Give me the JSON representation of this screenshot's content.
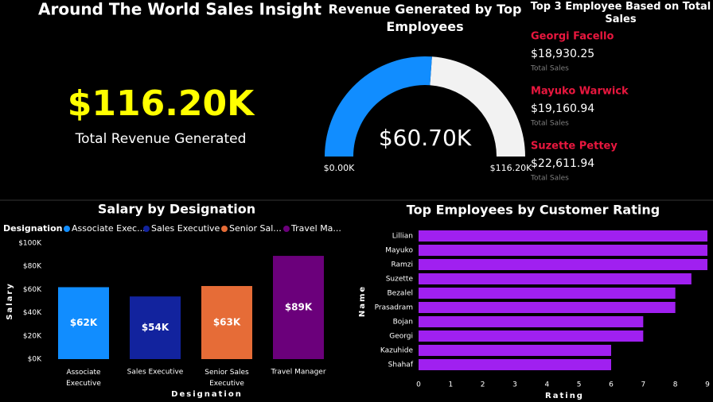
{
  "header": {
    "title": "Around The World Sales Insight"
  },
  "kpi": {
    "value": "$116.20K",
    "label": "Total Revenue Generated"
  },
  "top_employees": {
    "title": "Top 3 Employee Based on Total Sales",
    "items": [
      {
        "name": "Georgi Facello",
        "sales": "$18,930.25",
        "caption": "Total Sales"
      },
      {
        "name": "Mayuko Warwick",
        "sales": "$19,160.94",
        "caption": "Total Sales"
      },
      {
        "name": "Suzette Pettey",
        "sales": "$22,611.94",
        "caption": "Total Sales"
      }
    ]
  },
  "chart_data": [
    {
      "type": "gauge",
      "title": "Revenue Generated by Top Employees",
      "values": [
        60700
      ],
      "value_labels": [
        "$60.70K"
      ],
      "ylim": [
        0,
        116200
      ],
      "yticks": [
        {
          "value": 0,
          "label": "$0.00K"
        },
        {
          "value": 116200,
          "label": "$116.20K"
        }
      ],
      "color": "#118dff",
      "track_color": "#f2f2f2"
    },
    {
      "type": "bar",
      "title": "Salary by Designation",
      "legend_title": "Designation",
      "legend_labels": [
        "Associate Exec...",
        "Sales Executive",
        "Senior Sal...",
        "Travel Ma..."
      ],
      "categories": [
        "Associate Executive",
        "Sales Executive",
        "Senior Sales Executive",
        "Travel Manager"
      ],
      "values": [
        62000,
        54000,
        63000,
        89000
      ],
      "value_labels": [
        "$62K",
        "$54K",
        "$63K",
        "$89K"
      ],
      "colors": [
        "#118dff",
        "#12239e",
        "#e66c37",
        "#6b007b"
      ],
      "xlabel": "Designation",
      "ylabel": "Salary",
      "ylim": [
        0,
        100000
      ],
      "yticks": [
        {
          "value": 0,
          "label": "$0K"
        },
        {
          "value": 20000,
          "label": "$20K"
        },
        {
          "value": 40000,
          "label": "$40K"
        },
        {
          "value": 60000,
          "label": "$60K"
        },
        {
          "value": 80000,
          "label": "$80K"
        },
        {
          "value": 100000,
          "label": "$100K"
        }
      ]
    },
    {
      "type": "hbar",
      "title": "Top Employees by Customer Rating",
      "categories": [
        "Lillian",
        "Mayuko",
        "Ramzi",
        "Suzette",
        "Bezalel",
        "Prasadram",
        "Bojan",
        "Georgi",
        "Kazuhide",
        "Shahaf"
      ],
      "values": [
        9,
        9,
        9,
        8.5,
        8,
        8,
        7,
        7,
        6,
        6
      ],
      "color": "#a020f0",
      "xlabel": "Rating",
      "ylabel": "Name",
      "xlim": [
        0,
        9
      ],
      "xticks": [
        0,
        1,
        2,
        3,
        4,
        5,
        6,
        7,
        8,
        9
      ]
    }
  ]
}
